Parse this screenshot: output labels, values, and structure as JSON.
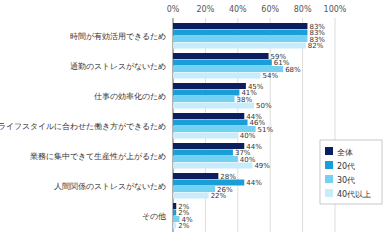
{
  "chart_data": {
    "type": "bar",
    "orientation": "horizontal",
    "data_labels": true,
    "grid": true,
    "legend": "right",
    "categories": [
      "時間が有効活用できるため",
      "通勤のストレスがないため",
      "仕事の効率化のため",
      "ライフスタイルに合わせた働き方ができるため",
      "業務に集中できて生産性が上がるため",
      "人間関係のストレスがないため",
      "その他"
    ],
    "series": [
      {
        "name": "全体",
        "color": "#0b1f5e",
        "values": [
          83,
          59,
          45,
          44,
          44,
          28,
          2
        ],
        "value_labels": [
          "83%",
          "59%",
          "45%",
          "44%",
          "44%",
          "28%",
          "2%"
        ]
      },
      {
        "name": "20代",
        "color": "#1a9ed8",
        "values": [
          83,
          61,
          41,
          46,
          37,
          44,
          2
        ],
        "value_labels": [
          "83%",
          "61%",
          "41%",
          "46%",
          "37%",
          "44%",
          "2%"
        ]
      },
      {
        "name": "30代",
        "color": "#74d1f2",
        "values": [
          83,
          68,
          38,
          51,
          40,
          26,
          4
        ],
        "value_labels": [
          "83%",
          "68%",
          "38%",
          "51%",
          "40%",
          "26%",
          "4%"
        ]
      },
      {
        "name": "40代以上",
        "color": "#c8ecfb",
        "values": [
          82,
          54,
          50,
          40,
          49,
          22,
          2
        ],
        "value_labels": [
          "82%",
          "54%",
          "50%",
          "40%",
          "49%",
          "22%",
          "2%"
        ]
      }
    ],
    "xlim": [
      0,
      100
    ],
    "xticks": [
      {
        "value": 0,
        "label": "0%"
      },
      {
        "value": 20,
        "label": "20%"
      },
      {
        "value": 40,
        "label": "40%"
      },
      {
        "value": 60,
        "label": "60%"
      },
      {
        "value": 80,
        "label": "80%"
      },
      {
        "value": 100,
        "label": "100%"
      }
    ]
  }
}
